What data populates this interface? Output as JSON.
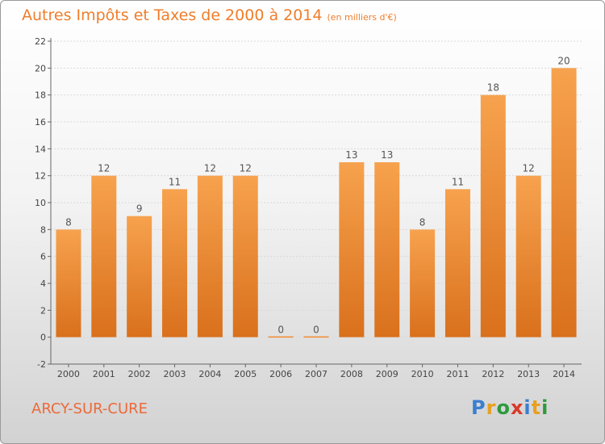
{
  "title": "Autres Impôts et Taxes de 2000 à 2014",
  "subtitle": "(en milliers d'€)",
  "commune": "ARCY-SUR-CURE",
  "logo": {
    "letters": [
      "P",
      "r",
      "o",
      "x",
      "i",
      "t",
      "i"
    ],
    "colors": [
      "#3a7fd0",
      "#e8a020",
      "#2e9a3e",
      "#d93a2a",
      "#3a7fd0",
      "#e8a020",
      "#2e9a3e"
    ]
  },
  "chart_data": {
    "type": "bar",
    "categories": [
      "2000",
      "2001",
      "2002",
      "2003",
      "2004",
      "2005",
      "2006",
      "2007",
      "2008",
      "2009",
      "2010",
      "2011",
      "2012",
      "2013",
      "2014"
    ],
    "values": [
      8,
      12,
      9,
      11,
      12,
      12,
      0,
      0,
      13,
      13,
      8,
      11,
      18,
      12,
      20
    ],
    "ylim": [
      -2,
      22
    ],
    "yticks": [
      -2,
      0,
      2,
      4,
      6,
      8,
      10,
      12,
      14,
      16,
      18,
      20,
      22
    ],
    "grid": true,
    "bar_color": "#f28a2e"
  }
}
